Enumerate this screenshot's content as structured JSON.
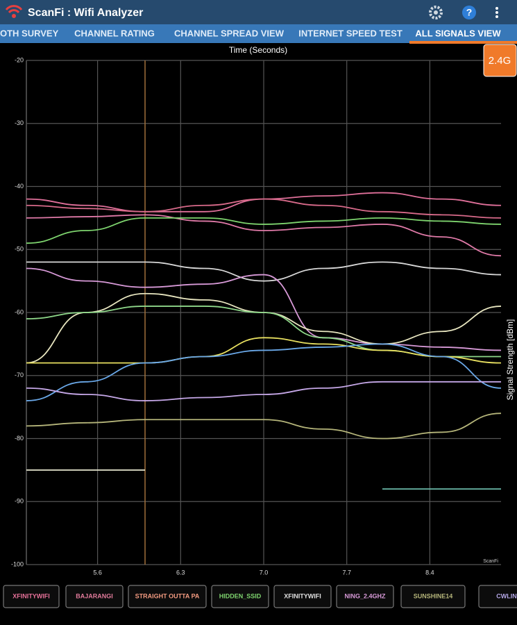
{
  "app": {
    "title": "ScanFi : Wifi Analyzer",
    "help_icon": "?",
    "tabs": [
      "OTH SURVEY",
      "CHANNEL RATING",
      "CHANNEL SPREAD VIEW",
      "INTERNET SPEED TEST",
      "ALL SIGNALS VIEW"
    ],
    "band_button": "2.4G"
  },
  "chart_data": {
    "type": "line",
    "title": "Time (Seconds)",
    "y_label": "Signal Strength [dBm]",
    "watermark": "ScanFi",
    "x": [
      5.0,
      5.5,
      6.0,
      6.5,
      7.0,
      7.5,
      8.0,
      8.5,
      9.0
    ],
    "xlim": [
      5.0,
      9.0
    ],
    "xticks": [
      5.6,
      6.3,
      {
        "value": 7,
        "label": "7.0"
      },
      7.7,
      8.4
    ],
    "ylim": [
      -100,
      -20
    ],
    "yticks": [
      -20,
      -30,
      -40,
      -50,
      -60,
      -70,
      -80,
      -90,
      -100
    ],
    "grid": true,
    "cursor_x": 6.0,
    "cursor_color": "#a0703a",
    "series": [
      {
        "color": "#e0709a",
        "values": [
          -42,
          -43,
          -44,
          -44,
          -42,
          -41.5,
          -41,
          -42,
          -43
        ]
      },
      {
        "color": "#d86a8a",
        "values": [
          -43,
          -43.5,
          -44,
          -43,
          -42,
          -43,
          -44,
          -44.5,
          -45
        ]
      },
      {
        "color": "#e07aa8",
        "values": [
          -45,
          -44.8,
          -44.5,
          -45.5,
          -47,
          -46.5,
          -46,
          -48,
          -51
        ]
      },
      {
        "color": "#7ed46e",
        "values": [
          -49,
          -47,
          -45,
          -45,
          -46,
          -45.5,
          -45,
          -45.5,
          -46
        ]
      },
      {
        "color": "#d8d8d8",
        "values": [
          -52,
          -52,
          -52,
          -53,
          -55,
          -53,
          -52,
          -53,
          -54
        ]
      },
      {
        "color": "#d89ad8",
        "values": [
          -53,
          -55,
          -56,
          -55.5,
          -54,
          -64,
          -65,
          -65.5,
          -66
        ]
      },
      {
        "color": "#e8e6c0",
        "values": [
          -68,
          -60,
          -57,
          -58,
          -60,
          -63,
          -65,
          -63,
          -59
        ]
      },
      {
        "color": "#8fd88a",
        "values": [
          -61,
          -60,
          -59,
          -59,
          -60,
          -64,
          -66,
          -67,
          -67
        ]
      },
      {
        "color": "#e8e060",
        "values": [
          -68,
          -68,
          -68,
          -67,
          -64,
          -65,
          -66,
          -67,
          -68
        ]
      },
      {
        "color": "#6aa8e8",
        "values": [
          -74,
          -71,
          -68,
          -67,
          -66,
          -65.5,
          -65,
          -67,
          -72
        ]
      },
      {
        "color": "#c6a8e8",
        "values": [
          -72,
          -73,
          -74,
          -73.5,
          -73,
          -72,
          -71,
          -71,
          -71
        ]
      },
      {
        "color": "#b5b57a",
        "values": [
          -78,
          -77.5,
          -77,
          -77,
          -77,
          -78.5,
          -80,
          -79,
          -76
        ]
      },
      {
        "color": "#e8e8d0",
        "values": [
          -85,
          -85,
          -85,
          null,
          null,
          null,
          null,
          null,
          null
        ]
      },
      {
        "color": "#6ab8a8",
        "values": [
          null,
          null,
          null,
          null,
          null,
          null,
          -88,
          -88,
          -88
        ]
      }
    ],
    "legend": [
      {
        "label": "XFINITYWIFI",
        "color": "#e8729a"
      },
      {
        "label": "BAJARANGI",
        "color": "#e07a9a"
      },
      {
        "label": "STRAIGHT OUTTA PA",
        "color": "#f29a80"
      },
      {
        "label": "HIDDEN_SSID",
        "color": "#7ed46e"
      },
      {
        "label": "XFINITYWIFI",
        "color": "#e0e0e0"
      },
      {
        "label": "NING_2.4GHZ",
        "color": "#d89ad8"
      },
      {
        "label": "SUNSHINE14",
        "color": "#b5b57a"
      },
      {
        "label": "CWLIN",
        "color": "#b6a8e8"
      }
    ]
  }
}
